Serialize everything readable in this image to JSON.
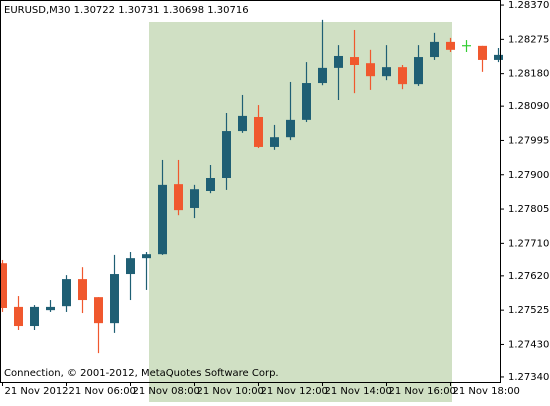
{
  "chart_data": {
    "type": "candlestick",
    "header": "EURUSD,M30  1.30722 1.30731 1.30698 1.30716",
    "footer": "Connection, © 2001-2012, MetaQuotes Software Corp.",
    "categories": [
      "21 Nov 2012",
      null,
      null,
      null,
      "21 Nov 06:00",
      null,
      null,
      null,
      "21 Nov 08:00",
      null,
      null,
      null,
      "21 Nov 10:00",
      null,
      null,
      null,
      "21 Nov 12:00",
      null,
      null,
      null,
      "21 Nov 14:00",
      null,
      null,
      null,
      "21 Nov 16:00",
      null,
      null,
      null,
      "21 Nov 18:00",
      null,
      null,
      null
    ],
    "open": [
      1.27655,
      1.27534,
      1.27481,
      1.27525,
      1.27536,
      1.27611,
      1.27561,
      1.27489,
      1.27625,
      1.27669,
      1.2768,
      1.27874,
      1.27808,
      1.27855,
      1.27891,
      1.28021,
      1.2806,
      1.27977,
      1.28004,
      1.28052,
      1.28154,
      1.28196,
      1.28226,
      1.28209,
      1.28173,
      1.28198,
      1.28151,
      1.28226,
      1.28268,
      1.28259,
      1.28257,
      1.28218
    ],
    "high": [
      1.27664,
      1.27564,
      1.27539,
      1.27553,
      1.27622,
      1.27644,
      1.27561,
      1.27678,
      1.27686,
      1.27686,
      1.27941,
      1.27941,
      1.27872,
      1.27927,
      1.28071,
      1.28121,
      1.28093,
      1.28038,
      1.28157,
      1.28212,
      1.28329,
      1.28259,
      1.28301,
      1.28246,
      1.28259,
      1.28204,
      1.28259,
      1.28293,
      1.28279,
      1.28273,
      1.28257,
      1.28251
    ],
    "low": [
      1.2752,
      1.2747,
      1.2747,
      1.2752,
      1.2752,
      1.27517,
      1.27406,
      1.27462,
      1.27553,
      1.27581,
      1.27678,
      1.27788,
      1.2778,
      1.27849,
      1.27858,
      1.28016,
      1.27974,
      1.27969,
      1.27996,
      1.28046,
      1.28148,
      1.28107,
      1.28126,
      1.28135,
      1.28162,
      1.28137,
      1.28146,
      1.28218,
      1.2824,
      1.2824,
      1.28185,
      1.28212
    ],
    "close": [
      1.27531,
      1.27481,
      1.27534,
      1.27534,
      1.27611,
      1.27553,
      1.27489,
      1.27625,
      1.27669,
      1.2768,
      1.27872,
      1.27802,
      1.2786,
      1.27891,
      1.28021,
      1.28063,
      1.27977,
      1.28004,
      1.28052,
      1.28154,
      1.28196,
      1.28229,
      1.28204,
      1.28173,
      1.28198,
      1.28151,
      1.28226,
      1.28268,
      1.28246,
      1.28259,
      1.28218,
      1.28232
    ],
    "up_color": "#1f5f74",
    "down_color": "#f0582e",
    "doji_color": "#32cd32",
    "ylim": [
      1.27326,
      1.28384
    ],
    "yticks": [
      {
        "value": 1.2837,
        "label": "1.28370"
      },
      1.28275,
      {
        "value": 1.2818,
        "label": "1.28180"
      },
      {
        "value": 1.2809,
        "label": "1.28090"
      },
      1.27995,
      {
        "value": 1.279,
        "label": "1.27900"
      },
      1.27805,
      {
        "value": 1.2771,
        "label": "1.27710"
      },
      {
        "value": 1.2762,
        "label": "1.27620"
      },
      1.27525,
      {
        "value": 1.2743,
        "label": "1.27430"
      },
      {
        "value": 1.2734,
        "label": "1.27340"
      }
    ]
  }
}
